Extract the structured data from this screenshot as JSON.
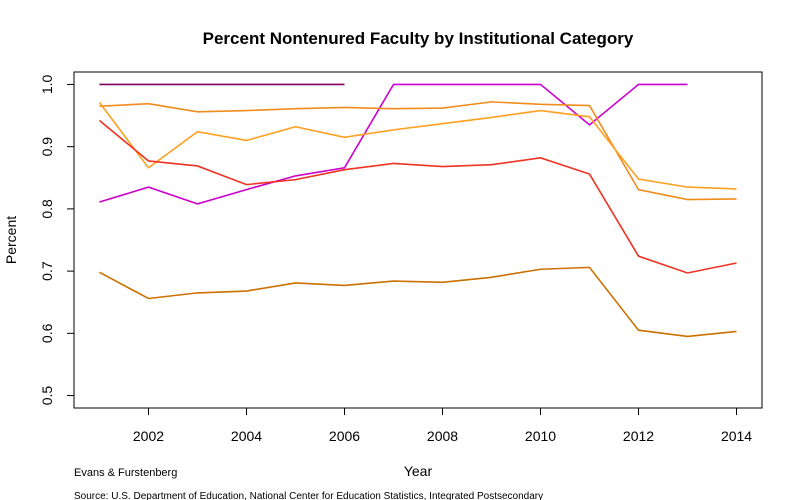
{
  "chart_data": {
    "type": "line",
    "title": "Percent Nontenured Faculty by Institutional Category",
    "xlabel": "Year",
    "ylabel": "Percent",
    "caption": "Evans & Furstenberg",
    "source": "Source: U.S. Department of Education, National Center for Education Statistics, Integrated Postsecondary",
    "x": [
      2001,
      2002,
      2003,
      2004,
      2005,
      2006,
      2007,
      2008,
      2009,
      2010,
      2011,
      2012,
      2013,
      2014
    ],
    "series": [
      {
        "color": "#800060",
        "values": [
          1,
          1,
          1,
          1,
          1,
          1,
          null,
          null,
          null,
          null,
          null,
          null,
          null,
          null
        ]
      },
      {
        "color": "#cc00cc",
        "values": [
          0.811,
          0.835,
          0.808,
          0.831,
          0.853,
          0.866,
          1,
          1,
          1,
          1,
          0.935,
          1,
          1,
          null
        ]
      },
      {
        "color": "#f08c1e",
        "values": [
          0.965,
          0.969,
          0.956,
          0.958,
          0.961,
          0.963,
          0.961,
          0.962,
          0.972,
          0.968,
          0.966,
          0.831,
          0.815,
          0.816
        ]
      },
      {
        "color": "#ffa020",
        "values": [
          0.971,
          0.866,
          0.924,
          0.91,
          0.932,
          0.915,
          0.927,
          0.937,
          0.947,
          0.958,
          0.948,
          0.848,
          0.835,
          0.832
        ]
      },
      {
        "color": "#ee3322",
        "values": [
          0.942,
          0.877,
          0.869,
          0.839,
          0.847,
          0.863,
          0.873,
          0.868,
          0.871,
          0.882,
          0.856,
          0.724,
          0.697,
          0.713
        ]
      },
      {
        "color": "#cc7000",
        "values": [
          0.698,
          0.656,
          0.665,
          0.668,
          0.681,
          0.677,
          0.684,
          0.682,
          0.69,
          0.703,
          0.706,
          0.605,
          0.595,
          0.603
        ]
      }
    ],
    "xlim": [
      2000.48,
      2014.52
    ],
    "ylim": [
      0.48,
      1.02
    ],
    "xticks": [
      2002,
      2004,
      2006,
      2008,
      2010,
      2012,
      2014
    ],
    "yticks": [
      0.5,
      0.6,
      0.7,
      0.8,
      0.9,
      {
        "value": 1,
        "label": "1.0"
      }
    ],
    "grid": false
  }
}
